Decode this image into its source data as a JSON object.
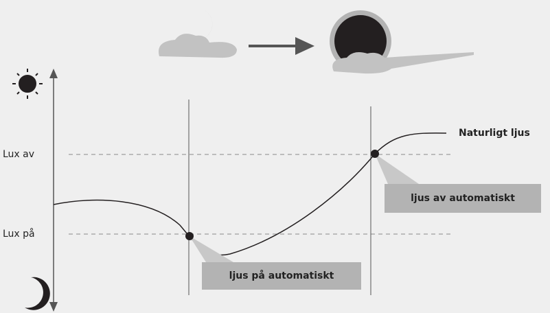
{
  "axis": {
    "lux_off": "Lux av",
    "lux_on": "Lux på"
  },
  "curve_label": "Naturligt ljus",
  "callouts": {
    "off": "ljus av automatiskt",
    "on": "ljus på automatiskt"
  }
}
